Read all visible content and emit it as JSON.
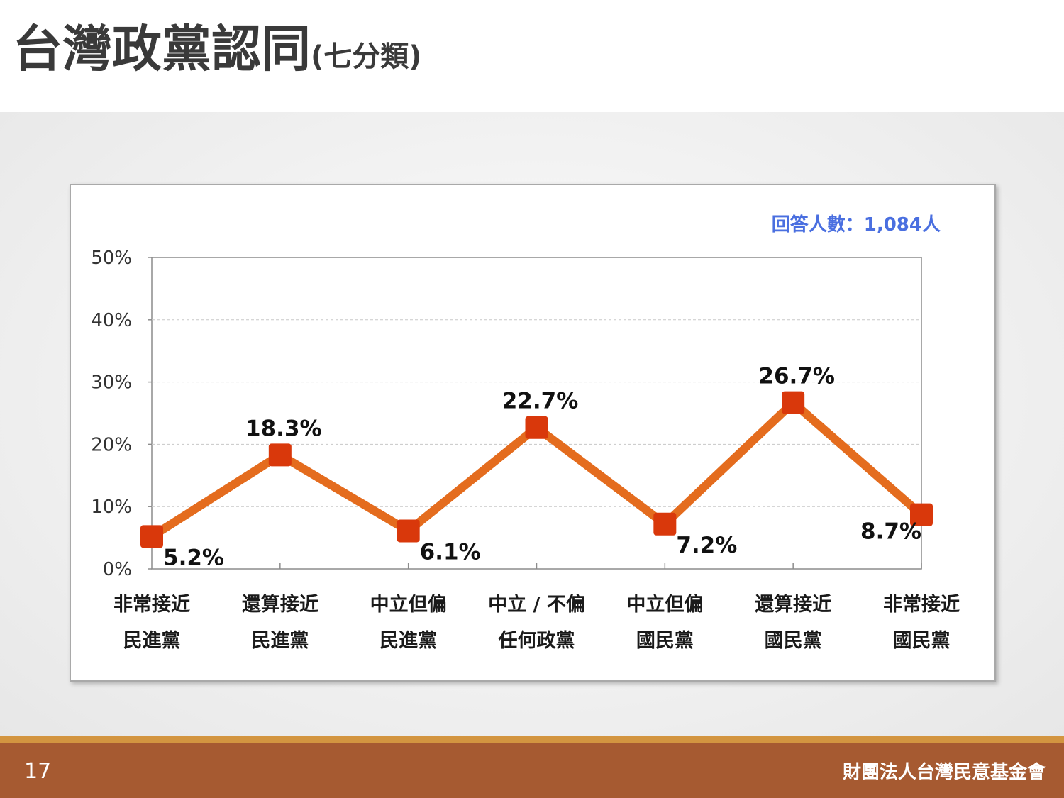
{
  "title": "台灣政黨認同",
  "subtitle": "(七分類)",
  "respondents_label": "回答人數：1,084人",
  "page_number": "17",
  "organization": "財團法人台灣民意基金會",
  "colors": {
    "line": "#e46c1e",
    "marker": "#d9380b",
    "respondents_text": "#4a6fe0",
    "footer": "#a65a31",
    "footer_accent": "#d39540"
  },
  "chart_data": {
    "type": "line",
    "categories": [
      [
        "非常接近",
        "民進黨"
      ],
      [
        "還算接近",
        "民進黨"
      ],
      [
        "中立但偏",
        "民進黨"
      ],
      [
        "中立 / 不偏",
        "任何政黨"
      ],
      [
        "中立但偏",
        "國民黨"
      ],
      [
        "還算接近",
        "國民黨"
      ],
      [
        "非常接近",
        "國民黨"
      ]
    ],
    "series": [
      {
        "values": [
          5.2,
          18.3,
          6.1,
          22.7,
          7.2,
          26.7,
          8.7
        ]
      }
    ],
    "data_labels": [
      "5.2%",
      "18.3%",
      "6.1%",
      "22.7%",
      "7.2%",
      "26.7%",
      "8.7%"
    ],
    "ylim": [
      0,
      50
    ],
    "yticks": [
      0,
      10,
      20,
      30,
      40,
      50
    ],
    "ytick_labels": [
      "0%",
      "10%",
      "20%",
      "30%",
      "40%",
      "50%"
    ],
    "grid": true,
    "legend": "none"
  }
}
